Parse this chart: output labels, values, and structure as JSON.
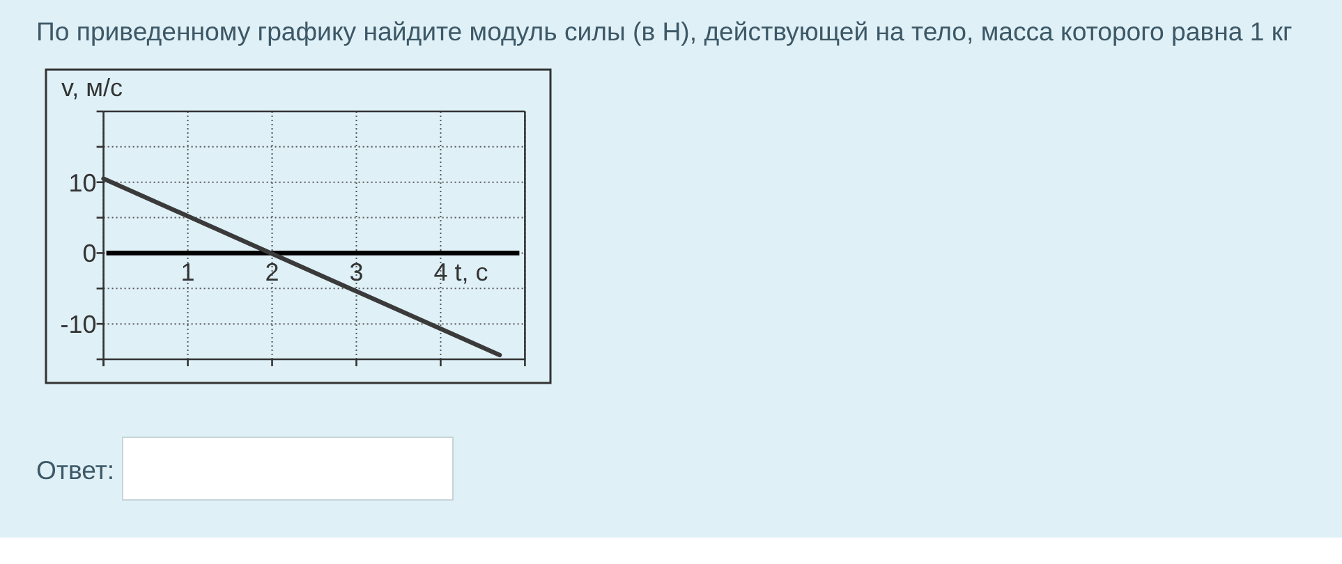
{
  "chart_data": {
    "type": "line",
    "title": "По приведенному графику найдите модуль силы (в Н), действующей на тело, масса которого равна 1 кг",
    "xlabel": "t, с",
    "ylabel": "v, м/с",
    "x": [
      0,
      4.7
    ],
    "series": [
      {
        "color": "#3a3a3a",
        "values": [
          10.5,
          -14.4
        ]
      }
    ],
    "xlim": [
      0,
      5
    ],
    "ylim": [
      -15,
      20
    ],
    "xticks": [
      {
        "value": 0,
        "label": null
      },
      1,
      2,
      3,
      4,
      {
        "value": 5,
        "label": null
      }
    ],
    "yticks": [
      {
        "value": -15,
        "label": null
      },
      -10,
      {
        "value": -5,
        "label": null
      },
      0,
      {
        "value": 5,
        "label": null
      },
      10,
      {
        "value": 15,
        "label": null
      },
      {
        "value": 20,
        "label": null
      }
    ],
    "grid": true,
    "annotations": [
      "Ответ:"
    ]
  }
}
